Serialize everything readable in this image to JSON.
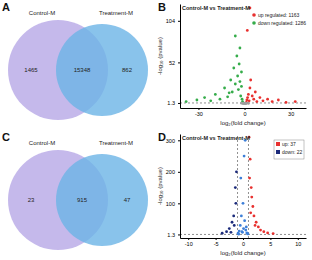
{
  "chart_data": [
    {
      "type": "venn",
      "panel_label": "A",
      "sets": [
        {
          "name": "Control-M",
          "color": "#b6a8e6"
        },
        {
          "name": "Treatment-M",
          "color": "#6cb4e6"
        }
      ],
      "values": [
        1465,
        15348,
        862
      ]
    },
    {
      "type": "scatter",
      "panel_label": "B",
      "title": "Control-M vs Treatment-M",
      "x_label": "log₂(fold change)",
      "y_label": "-log₁₀ (pvalue)",
      "xlim": [
        -42,
        40
      ],
      "xticks": [
        -30,
        0,
        30
      ],
      "ylim": [
        -5,
        125
      ],
      "yticks": [
        1.3,
        52,
        104
      ],
      "reference_lines": {
        "y": [
          1.3
        ]
      },
      "legend": "top-right",
      "series": [
        {
          "name": "up regulated: 1163",
          "color": "#e8312f",
          "x": [
            1.2,
            1.5,
            2,
            2.5,
            3,
            3.5,
            4,
            5,
            6,
            7,
            8,
            10,
            12,
            15,
            18,
            22,
            27,
            33,
            3.5,
            1.8
          ],
          "values": [
            2,
            5,
            8,
            12,
            4,
            20,
            30,
            10,
            6,
            15,
            3,
            8,
            4,
            6,
            3,
            5,
            2,
            3,
            120,
            92
          ]
        },
        {
          "name": "down regulated: 1286",
          "color": "#35ac4a",
          "x": [
            -38,
            -31,
            -26,
            -22,
            -19,
            -16,
            -13,
            -11,
            -9,
            -8,
            -7,
            -6,
            -5,
            -4.5,
            -4,
            -3.5,
            -3,
            -2.5,
            -2,
            -1.6,
            -1.3,
            -6,
            -10,
            -3,
            -2
          ],
          "values": [
            3,
            5,
            8,
            4,
            12,
            6,
            20,
            9,
            30,
            15,
            45,
            25,
            60,
            35,
            18,
            50,
            28,
            10,
            40,
            6,
            3,
            85,
            14,
            70,
            22
          ]
        },
        {
          "color": "#9e9e9e",
          "x": [
            -1,
            -0.6,
            -0.2,
            0.3,
            0.7,
            1,
            -2,
            2.5
          ],
          "values": [
            0.5,
            0.8,
            1.1,
            0.4,
            0.9,
            0.6,
            1,
            0.7
          ]
        }
      ]
    },
    {
      "type": "venn",
      "panel_label": "C",
      "sets": [
        {
          "name": "Control-M",
          "color": "#b6a8e6"
        },
        {
          "name": "Treatment-M",
          "color": "#6cb4e6"
        }
      ],
      "values": [
        23,
        915,
        47
      ]
    },
    {
      "type": "scatter",
      "panel_label": "D",
      "title": "Control-M vs Treatment-M",
      "x_label": "log₂(fold change)",
      "y_label": "-log₁₀ (pvalue)",
      "xlim": [
        -11.5,
        11.5
      ],
      "xticks": [
        -10,
        -5,
        0,
        5,
        10
      ],
      "ylim": [
        -10,
        320
      ],
      "yticks": [
        1.3,
        100,
        200,
        300
      ],
      "reference_lines": {
        "x": [
          -1,
          1
        ],
        "y": [
          1.3
        ]
      },
      "legend": "top-right",
      "series": [
        {
          "name": "up: 37",
          "color": "#e8312f",
          "x": [
            1.1,
            1.3,
            1.5,
            1.8,
            2,
            2.4,
            2.8,
            3.2,
            3.8,
            4.5,
            5.5,
            1.2,
            1.6,
            2.2,
            1.4
          ],
          "values": [
            310,
            240,
            150,
            90,
            60,
            40,
            25,
            15,
            10,
            6,
            4,
            180,
            120,
            30,
            70
          ]
        },
        {
          "name": "down: 22",
          "color": "#1b2a7a",
          "x": [
            -1.2,
            -1.4,
            -1.7,
            -2,
            -2.5,
            -3,
            -3.8,
            -1.3,
            -1.6,
            -2.2
          ],
          "values": [
            200,
            150,
            60,
            40,
            20,
            10,
            5,
            100,
            30,
            8
          ]
        },
        {
          "color": "#3d7fd8",
          "x": [
            -0.9,
            -0.7,
            -0.5,
            -0.3,
            -0.1,
            0,
            0.1,
            0.3,
            0.5,
            0.7,
            0.9,
            -0.4,
            0.2,
            0.6,
            -0.8,
            0.4,
            -0.2,
            0.8
          ],
          "values": [
            5,
            12,
            30,
            60,
            8,
            100,
            20,
            45,
            15,
            6,
            3,
            180,
            250,
            25,
            2,
            300,
            10,
            4
          ]
        }
      ]
    }
  ]
}
